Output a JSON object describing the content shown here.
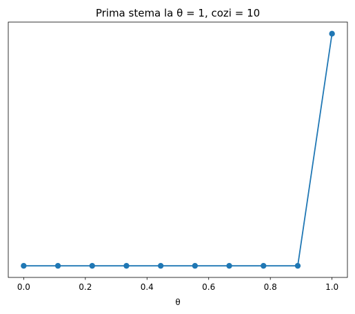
{
  "chart_data": {
    "type": "line",
    "title": "Prima stema la θ = 1, cozi = 10",
    "xlabel": "θ",
    "ylabel": "",
    "x": [
      0.0,
      0.1111,
      0.2222,
      0.3333,
      0.4444,
      0.5556,
      0.6667,
      0.7778,
      0.8889,
      1.0
    ],
    "series": [
      {
        "values": [
          0,
          0,
          0,
          0,
          0,
          0,
          0,
          0,
          0,
          1
        ],
        "color": "#1f77b4",
        "marker": "circle"
      }
    ],
    "xlim": [
      -0.05,
      1.05
    ],
    "ylim": [
      -0.05,
      1.05
    ],
    "xticks": [
      0.0,
      0.2,
      0.4,
      0.6,
      0.8,
      1.0
    ],
    "xtick_labels": [
      "0.0",
      "0.2",
      "0.4",
      "0.6",
      "0.8",
      "1.0"
    ],
    "yticks": [],
    "grid": false,
    "legend": "none"
  }
}
